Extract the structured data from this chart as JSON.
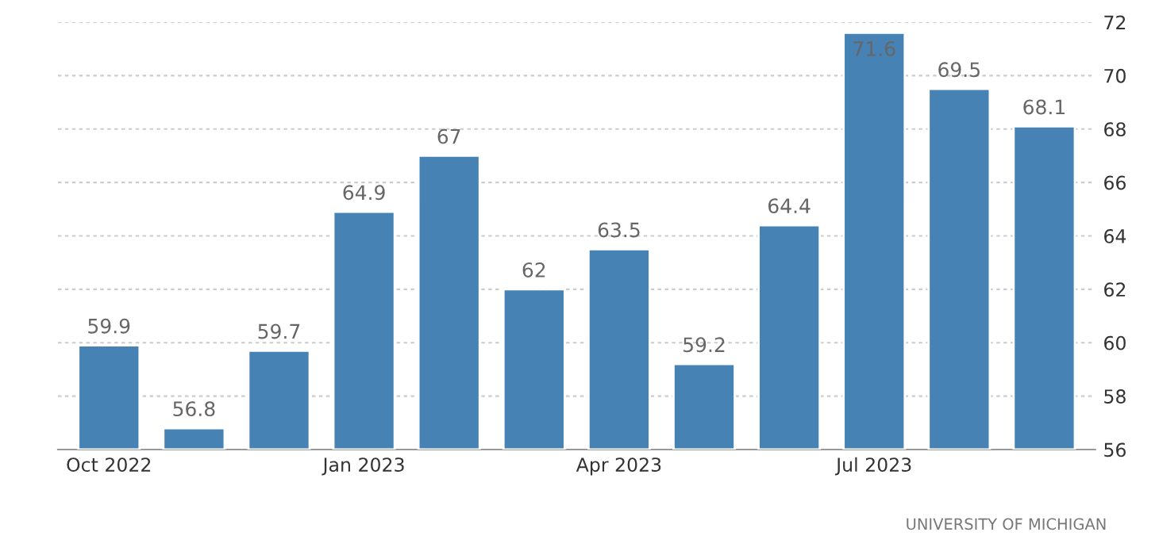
{
  "chart_data": {
    "type": "bar",
    "categories": [
      "Oct 2022",
      null,
      null,
      "Jan 2023",
      null,
      null,
      "Apr 2023",
      null,
      null,
      "Jul 2023",
      null,
      null
    ],
    "values": [
      59.9,
      56.8,
      59.7,
      64.9,
      67,
      62,
      63.5,
      59.2,
      64.4,
      71.6,
      69.5,
      68.1
    ],
    "color": "#4682b4",
    "ylim": [
      56,
      72
    ],
    "yticks": [
      56,
      58,
      60,
      62,
      64,
      66,
      68,
      70,
      72
    ],
    "grid": "y",
    "data_labels": true,
    "annotations": [
      "UNIVERSITY OF MICHIGAN"
    ]
  }
}
